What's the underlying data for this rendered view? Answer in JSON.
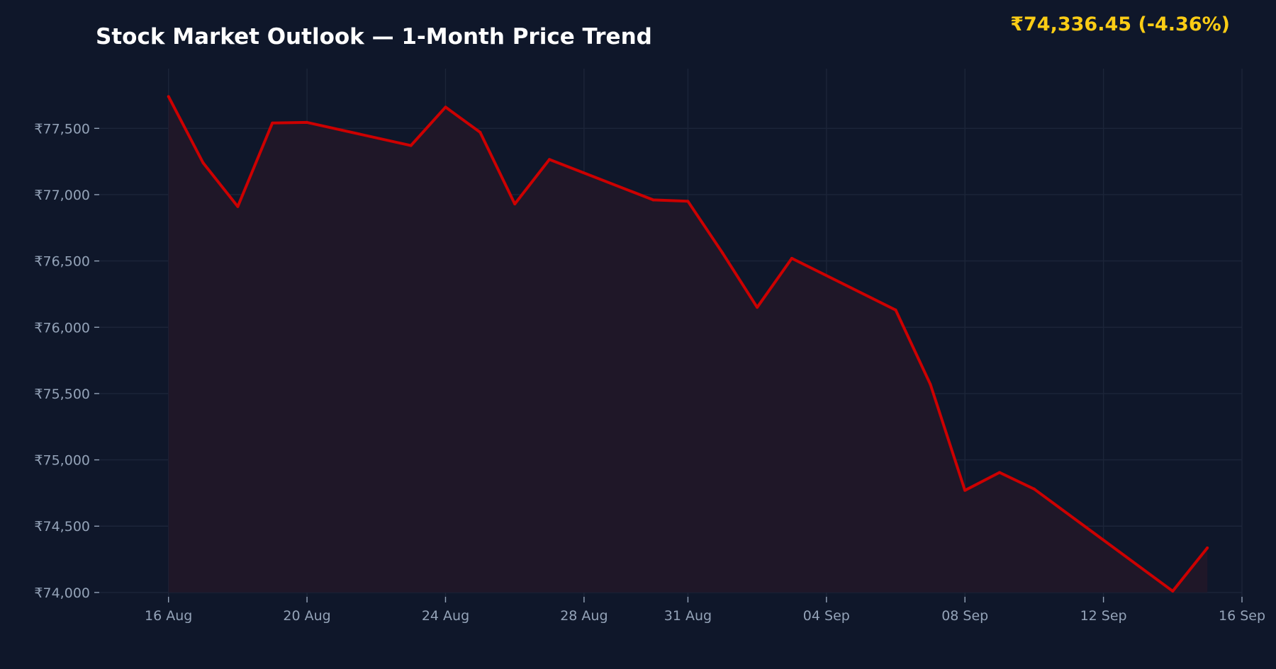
{
  "header": {
    "title": "Stock Market Outlook — 1-Month Price Trend",
    "price_readout": "₹74,336.45  (-4.36%)"
  },
  "colors": {
    "background": "#0f172a",
    "line": "#cc0000",
    "fill": "#1f1728",
    "grid": "#1c2539",
    "tick_text": "#94a3b8",
    "title": "#ffffff",
    "price": "#facc15"
  },
  "chart_data": {
    "type": "area",
    "title": "Stock Market Outlook — 1-Month Price Trend",
    "xlabel": "",
    "ylabel": "",
    "grid": true,
    "x_tick_labels": [
      {
        "date": "2024-08-16",
        "label": "16 Aug"
      },
      {
        "date": "2024-08-20",
        "label": "20 Aug"
      },
      {
        "date": "2024-08-24",
        "label": "24 Aug"
      },
      {
        "date": "2024-08-28",
        "label": "28 Aug"
      },
      {
        "date": "2024-08-31",
        "label": "31 Aug"
      },
      {
        "date": "2024-09-04",
        "label": "04 Sep"
      },
      {
        "date": "2024-09-08",
        "label": "08 Sep"
      },
      {
        "date": "2024-09-12",
        "label": "12 Sep"
      },
      {
        "date": "2024-09-16",
        "label": "16 Sep"
      }
    ],
    "y_ticks": [
      74000,
      74500,
      75000,
      75500,
      76000,
      76500,
      77000,
      77500
    ],
    "y_tick_labels": [
      "₹74,000",
      "₹74,500",
      "₹75,000",
      "₹75,500",
      "₹76,000",
      "₹76,500",
      "₹77,000",
      "₹77,500"
    ],
    "xlim": [
      "2024-08-14",
      "2024-09-16"
    ],
    "ylim": [
      73850,
      77950
    ],
    "series": [
      {
        "x": [
          "2024-08-16",
          "2024-08-17",
          "2024-08-18",
          "2024-08-19",
          "2024-08-20",
          "2024-08-23",
          "2024-08-24",
          "2024-08-25",
          "2024-08-26",
          "2024-08-27",
          "2024-08-30",
          "2024-08-31",
          "2024-09-01",
          "2024-09-02",
          "2024-09-03",
          "2024-09-06",
          "2024-09-07",
          "2024-09-08",
          "2024-09-09",
          "2024-09-10",
          "2024-09-14",
          "2024-09-15"
        ],
        "values": [
          77740,
          77240,
          76910,
          77540,
          77545,
          77370,
          77660,
          77470,
          76930,
          77265,
          76960,
          76950,
          76560,
          76150,
          76520,
          76130,
          75570,
          74770,
          74905,
          74780,
          74010,
          74336.45
        ]
      }
    ]
  }
}
